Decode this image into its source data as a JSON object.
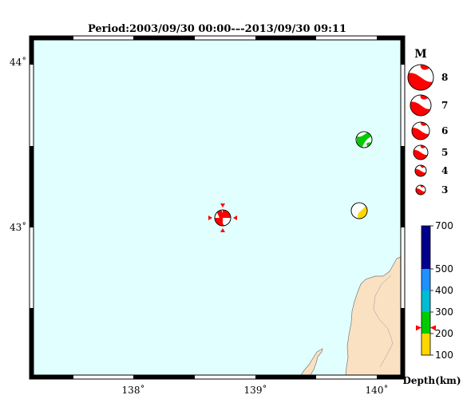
{
  "title": "Period:2003/09/30 00:00-–-2013/09/30 09:11",
  "lat_labels": [
    "44˚",
    "43˚"
  ],
  "lon_labels": [
    "138˚",
    "139˚",
    "140˚"
  ],
  "colors": {
    "sea": "#e2ffff",
    "land": "#f9e1c2",
    "beachball_red": "#ff0000",
    "beachball_green": "#00cc00",
    "beachball_yellow": "#ffd700"
  },
  "legend": {
    "heading": "M",
    "magnitudes": [
      "8",
      "7",
      "6",
      "5",
      "4",
      "3"
    ]
  },
  "depth_scale": {
    "caption": "Depth(km)",
    "ticks": [
      "700",
      "500",
      "400",
      "300",
      "200",
      "100"
    ],
    "bands": [
      {
        "from": 500,
        "to": 700,
        "color": "#00008b"
      },
      {
        "from": 400,
        "to": 500,
        "color": "#1e90ff"
      },
      {
        "from": 300,
        "to": 400,
        "color": "#00bcd4"
      },
      {
        "from": 200,
        "to": 300,
        "color": "#00cc00"
      },
      {
        "from": 100,
        "to": 200,
        "color": "#ffd700"
      }
    ],
    "marker_depth": 228
  },
  "events": [
    {
      "lon": 138.72,
      "lat": 43.03,
      "color": "red",
      "highlighted": true
    },
    {
      "lon": 139.88,
      "lat": 43.56,
      "color": "green"
    },
    {
      "lon": 139.86,
      "lat": 43.06,
      "color": "yellow"
    }
  ]
}
